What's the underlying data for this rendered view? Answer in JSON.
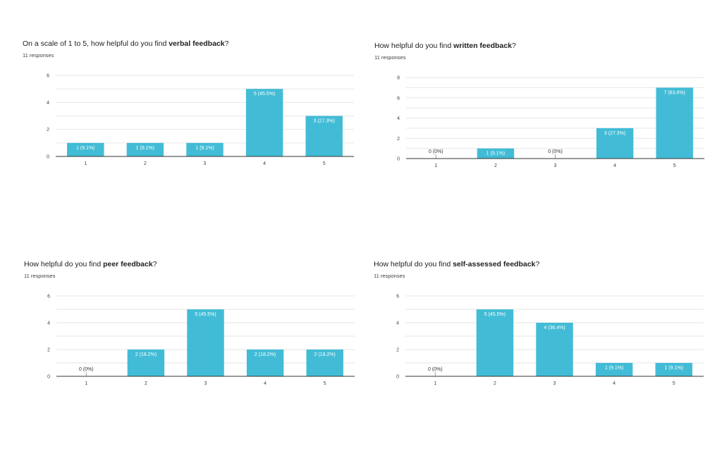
{
  "charts": [
    {
      "title": {
        "before": "On a scale of 1 to 5, how helpful do you find ",
        "bold": "verbal feedback",
        "after": "?"
      },
      "responses": "11 responses"
    },
    {
      "title": {
        "before": "How helpful do you find ",
        "bold": "written feedback",
        "after": "?"
      },
      "responses": "11 responses"
    },
    {
      "title": {
        "before": "How helpful do you find ",
        "bold": "peer feedback",
        "after": "?"
      },
      "responses": "11 responses"
    },
    {
      "title": {
        "before": "How helpful do you find ",
        "bold": "self-assessed feedback",
        "after": "?"
      },
      "responses": "11 responses"
    }
  ],
  "colors": {
    "bar": "#42bcd6",
    "grid": "#e6e6e6",
    "axis": "#333333",
    "label_inside": "#ffffff",
    "label_outside": "#333333"
  },
  "chart_data": [
    {
      "type": "bar",
      "title": "On a scale of 1 to 5, how helpful do you find verbal feedback?",
      "categories": [
        "1",
        "2",
        "3",
        "4",
        "5"
      ],
      "values": [
        1,
        1,
        1,
        5,
        3
      ],
      "labels": [
        "1 (9.1%)",
        "1 (9.1%)",
        "1 (9.1%)",
        "5 (45.5%)",
        "3 (27.3%)"
      ],
      "yticks": [
        0,
        2,
        4,
        6
      ],
      "ylim": [
        0,
        6
      ],
      "grid": true
    },
    {
      "type": "bar",
      "title": "How helpful do you find written feedback?",
      "categories": [
        "1",
        "2",
        "3",
        "4",
        "5"
      ],
      "values": [
        0,
        1,
        0,
        3,
        7
      ],
      "labels": [
        "0 (0%)",
        "1 (9.1%)",
        "0 (0%)",
        "3 (27.3%)",
        "7 (63.6%)"
      ],
      "yticks": [
        0,
        2,
        4,
        6,
        8
      ],
      "ylim": [
        0,
        8
      ],
      "grid": true
    },
    {
      "type": "bar",
      "title": "How helpful do you find peer feedback?",
      "categories": [
        "1",
        "2",
        "3",
        "4",
        "5"
      ],
      "values": [
        0,
        2,
        5,
        2,
        2
      ],
      "labels": [
        "0 (0%)",
        "2 (18.2%)",
        "5 (45.5%)",
        "2 (18.2%)",
        "2 (18.2%)"
      ],
      "yticks": [
        0,
        2,
        4,
        6
      ],
      "ylim": [
        0,
        6
      ],
      "grid": true
    },
    {
      "type": "bar",
      "title": "How helpful do you find self-assessed feedback?",
      "categories": [
        "1",
        "2",
        "3",
        "4",
        "5"
      ],
      "values": [
        0,
        5,
        4,
        1,
        1
      ],
      "labels": [
        "0 (0%)",
        "5 (45.5%)",
        "4 (36.4%)",
        "1 (9.1%)",
        "1 (9.1%)"
      ],
      "yticks": [
        0,
        2,
        4,
        6
      ],
      "ylim": [
        0,
        6
      ],
      "grid": true
    }
  ]
}
